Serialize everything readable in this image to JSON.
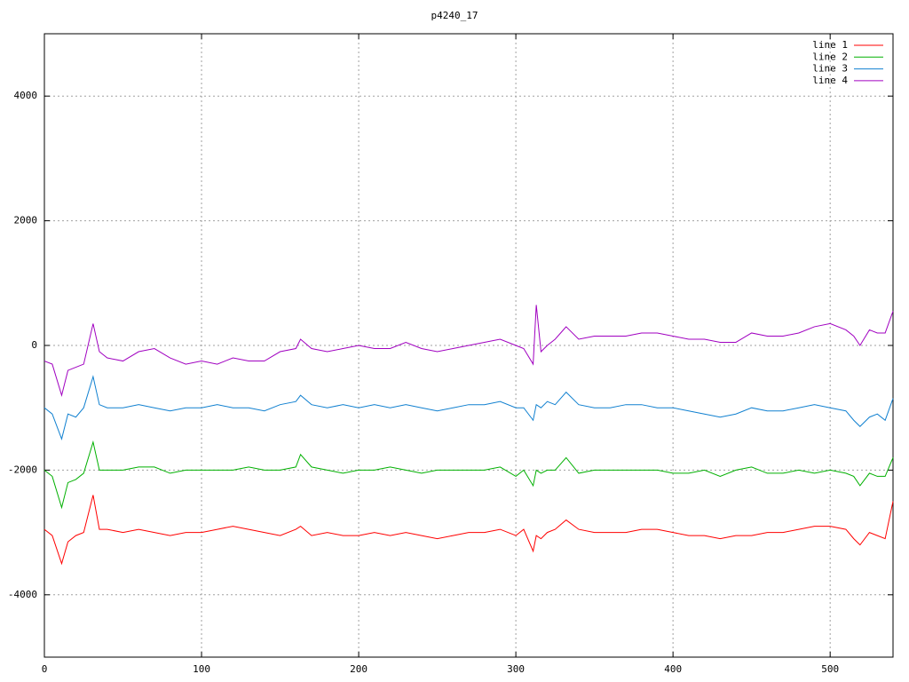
{
  "chart_data": {
    "type": "line",
    "title": "p4240_17",
    "x": [
      0,
      5,
      11,
      15,
      20,
      25,
      31,
      35,
      40,
      50,
      60,
      70,
      80,
      90,
      100,
      110,
      120,
      130,
      140,
      150,
      160,
      163,
      170,
      180,
      190,
      200,
      210,
      220,
      230,
      240,
      250,
      260,
      270,
      280,
      290,
      300,
      305,
      311,
      313,
      316,
      320,
      325,
      332,
      340,
      350,
      360,
      370,
      380,
      390,
      400,
      410,
      420,
      430,
      440,
      450,
      460,
      470,
      480,
      490,
      500,
      510,
      515,
      519,
      525,
      530,
      535,
      540
    ],
    "series": [
      {
        "name": "line 1",
        "color": "#ff0000",
        "values": [
          -2950,
          -3050,
          -3500,
          -3150,
          -3050,
          -3000,
          -2400,
          -2950,
          -2950,
          -3000,
          -2950,
          -3000,
          -3050,
          -3000,
          -3000,
          -2950,
          -2900,
          -2950,
          -3000,
          -3050,
          -2950,
          -2900,
          -3050,
          -3000,
          -3050,
          -3050,
          -3000,
          -3050,
          -3000,
          -3050,
          -3100,
          -3050,
          -3000,
          -3000,
          -2950,
          -3050,
          -2950,
          -3300,
          -3050,
          -3100,
          -3000,
          -2950,
          -2800,
          -2950,
          -3000,
          -3000,
          -3000,
          -2950,
          -2950,
          -3000,
          -3050,
          -3050,
          -3100,
          -3050,
          -3050,
          -3000,
          -3000,
          -2950,
          -2900,
          -2900,
          -2950,
          -3100,
          -3200,
          -3000,
          -3050,
          -3100,
          -2500
        ]
      },
      {
        "name": "line 2",
        "color": "#00b000",
        "values": [
          -2000,
          -2100,
          -2600,
          -2200,
          -2150,
          -2050,
          -1550,
          -2000,
          -2000,
          -2000,
          -1950,
          -1950,
          -2050,
          -2000,
          -2000,
          -2000,
          -2000,
          -1950,
          -2000,
          -2000,
          -1950,
          -1750,
          -1950,
          -2000,
          -2050,
          -2000,
          -2000,
          -1950,
          -2000,
          -2050,
          -2000,
          -2000,
          -2000,
          -2000,
          -1950,
          -2100,
          -2000,
          -2250,
          -2000,
          -2050,
          -2000,
          -2000,
          -1800,
          -2050,
          -2000,
          -2000,
          -2000,
          -2000,
          -2000,
          -2050,
          -2050,
          -2000,
          -2100,
          -2000,
          -1950,
          -2050,
          -2050,
          -2000,
          -2050,
          -2000,
          -2050,
          -2100,
          -2250,
          -2050,
          -2100,
          -2100,
          -1800
        ]
      },
      {
        "name": "line 3",
        "color": "#1080d0",
        "values": [
          -1000,
          -1100,
          -1500,
          -1100,
          -1150,
          -1000,
          -500,
          -950,
          -1000,
          -1000,
          -950,
          -1000,
          -1050,
          -1000,
          -1000,
          -950,
          -1000,
          -1000,
          -1050,
          -950,
          -900,
          -800,
          -950,
          -1000,
          -950,
          -1000,
          -950,
          -1000,
          -950,
          -1000,
          -1050,
          -1000,
          -950,
          -950,
          -900,
          -1000,
          -1000,
          -1200,
          -950,
          -1000,
          -900,
          -950,
          -750,
          -950,
          -1000,
          -1000,
          -950,
          -950,
          -1000,
          -1000,
          -1050,
          -1100,
          -1150,
          -1100,
          -1000,
          -1050,
          -1050,
          -1000,
          -950,
          -1000,
          -1050,
          -1200,
          -1300,
          -1150,
          -1100,
          -1200,
          -850
        ]
      },
      {
        "name": "line 4",
        "color": "#a000c0",
        "values": [
          -250,
          -300,
          -800,
          -400,
          -350,
          -300,
          350,
          -100,
          -200,
          -250,
          -100,
          -50,
          -200,
          -300,
          -250,
          -300,
          -200,
          -250,
          -250,
          -100,
          -50,
          100,
          -50,
          -100,
          -50,
          0,
          -50,
          -50,
          50,
          -50,
          -100,
          -50,
          0,
          50,
          100,
          0,
          -50,
          -300,
          650,
          -100,
          0,
          100,
          300,
          100,
          150,
          150,
          150,
          200,
          200,
          150,
          100,
          100,
          50,
          50,
          200,
          150,
          150,
          200,
          300,
          350,
          250,
          150,
          0,
          250,
          200,
          200,
          550
        ]
      }
    ],
    "xlim": [
      0,
      540
    ],
    "ylim": [
      -5000,
      5000
    ],
    "xticks": [
      0,
      100,
      200,
      300,
      400,
      500
    ],
    "yticks": [
      -4000,
      -2000,
      0,
      2000,
      4000
    ],
    "grid": true,
    "legend": "upper right"
  }
}
